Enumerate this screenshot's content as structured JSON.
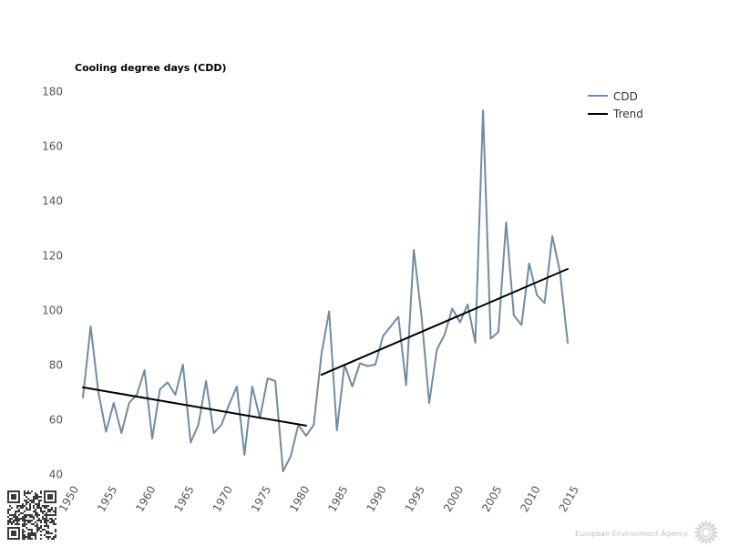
{
  "chart_data": {
    "type": "line",
    "title": "Cooling degree days (CDD)",
    "xlim": [
      1950,
      2015
    ],
    "ylim": [
      40,
      180
    ],
    "xticks": [
      1950,
      1955,
      1960,
      1965,
      1970,
      1975,
      1980,
      1985,
      1990,
      1995,
      2000,
      2005,
      2010,
      2015
    ],
    "yticks": [
      40,
      60,
      80,
      100,
      120,
      140,
      160,
      180
    ],
    "grid": false,
    "legend_position": "top-right",
    "series": [
      {
        "name": "CDD",
        "color": "#6f8ca3",
        "x": [
          1951,
          1952,
          1953,
          1954,
          1955,
          1956,
          1957,
          1958,
          1959,
          1960,
          1961,
          1962,
          1963,
          1964,
          1965,
          1966,
          1967,
          1968,
          1969,
          1970,
          1971,
          1972,
          1973,
          1974,
          1975,
          1976,
          1977,
          1978,
          1979,
          1980,
          1981,
          1982,
          1983,
          1984,
          1985,
          1986,
          1987,
          1988,
          1989,
          1990,
          1991,
          1992,
          1993,
          1994,
          1995,
          1996,
          1997,
          1998,
          1999,
          2000,
          2001,
          2002,
          2003,
          2004,
          2005,
          2006,
          2007,
          2008,
          2009,
          2010,
          2011,
          2012,
          2013,
          2014
        ],
        "y": [
          68,
          94,
          70,
          55.5,
          66,
          55,
          66,
          69,
          78,
          53,
          71,
          73.5,
          69,
          80,
          51.5,
          58,
          74,
          55,
          58,
          65.5,
          72,
          47,
          72,
          60.5,
          75,
          74,
          41,
          46.5,
          58,
          54,
          58,
          84,
          99.5,
          56,
          80,
          72,
          80.5,
          79.5,
          80,
          90.5,
          94,
          97.5,
          72.5,
          122,
          98,
          66,
          85.5,
          91,
          100.5,
          95.5,
          102,
          88,
          173,
          89.5,
          92,
          132,
          98,
          94.5,
          117,
          105.5,
          102.5,
          127,
          114,
          88
        ]
      },
      {
        "name": "Trend",
        "color": "#000000",
        "segments": [
          {
            "x": [
              1951,
              1980
            ],
            "y": [
              71.7,
              57.7
            ]
          },
          {
            "x": [
              1982,
              2014
            ],
            "y": [
              76.3,
              115
            ]
          }
        ]
      }
    ]
  },
  "footer": {
    "agency": "European Environment Agency"
  },
  "icons": {
    "qr_code": "qr-code",
    "logo": "eea-sun-logo-icon"
  }
}
